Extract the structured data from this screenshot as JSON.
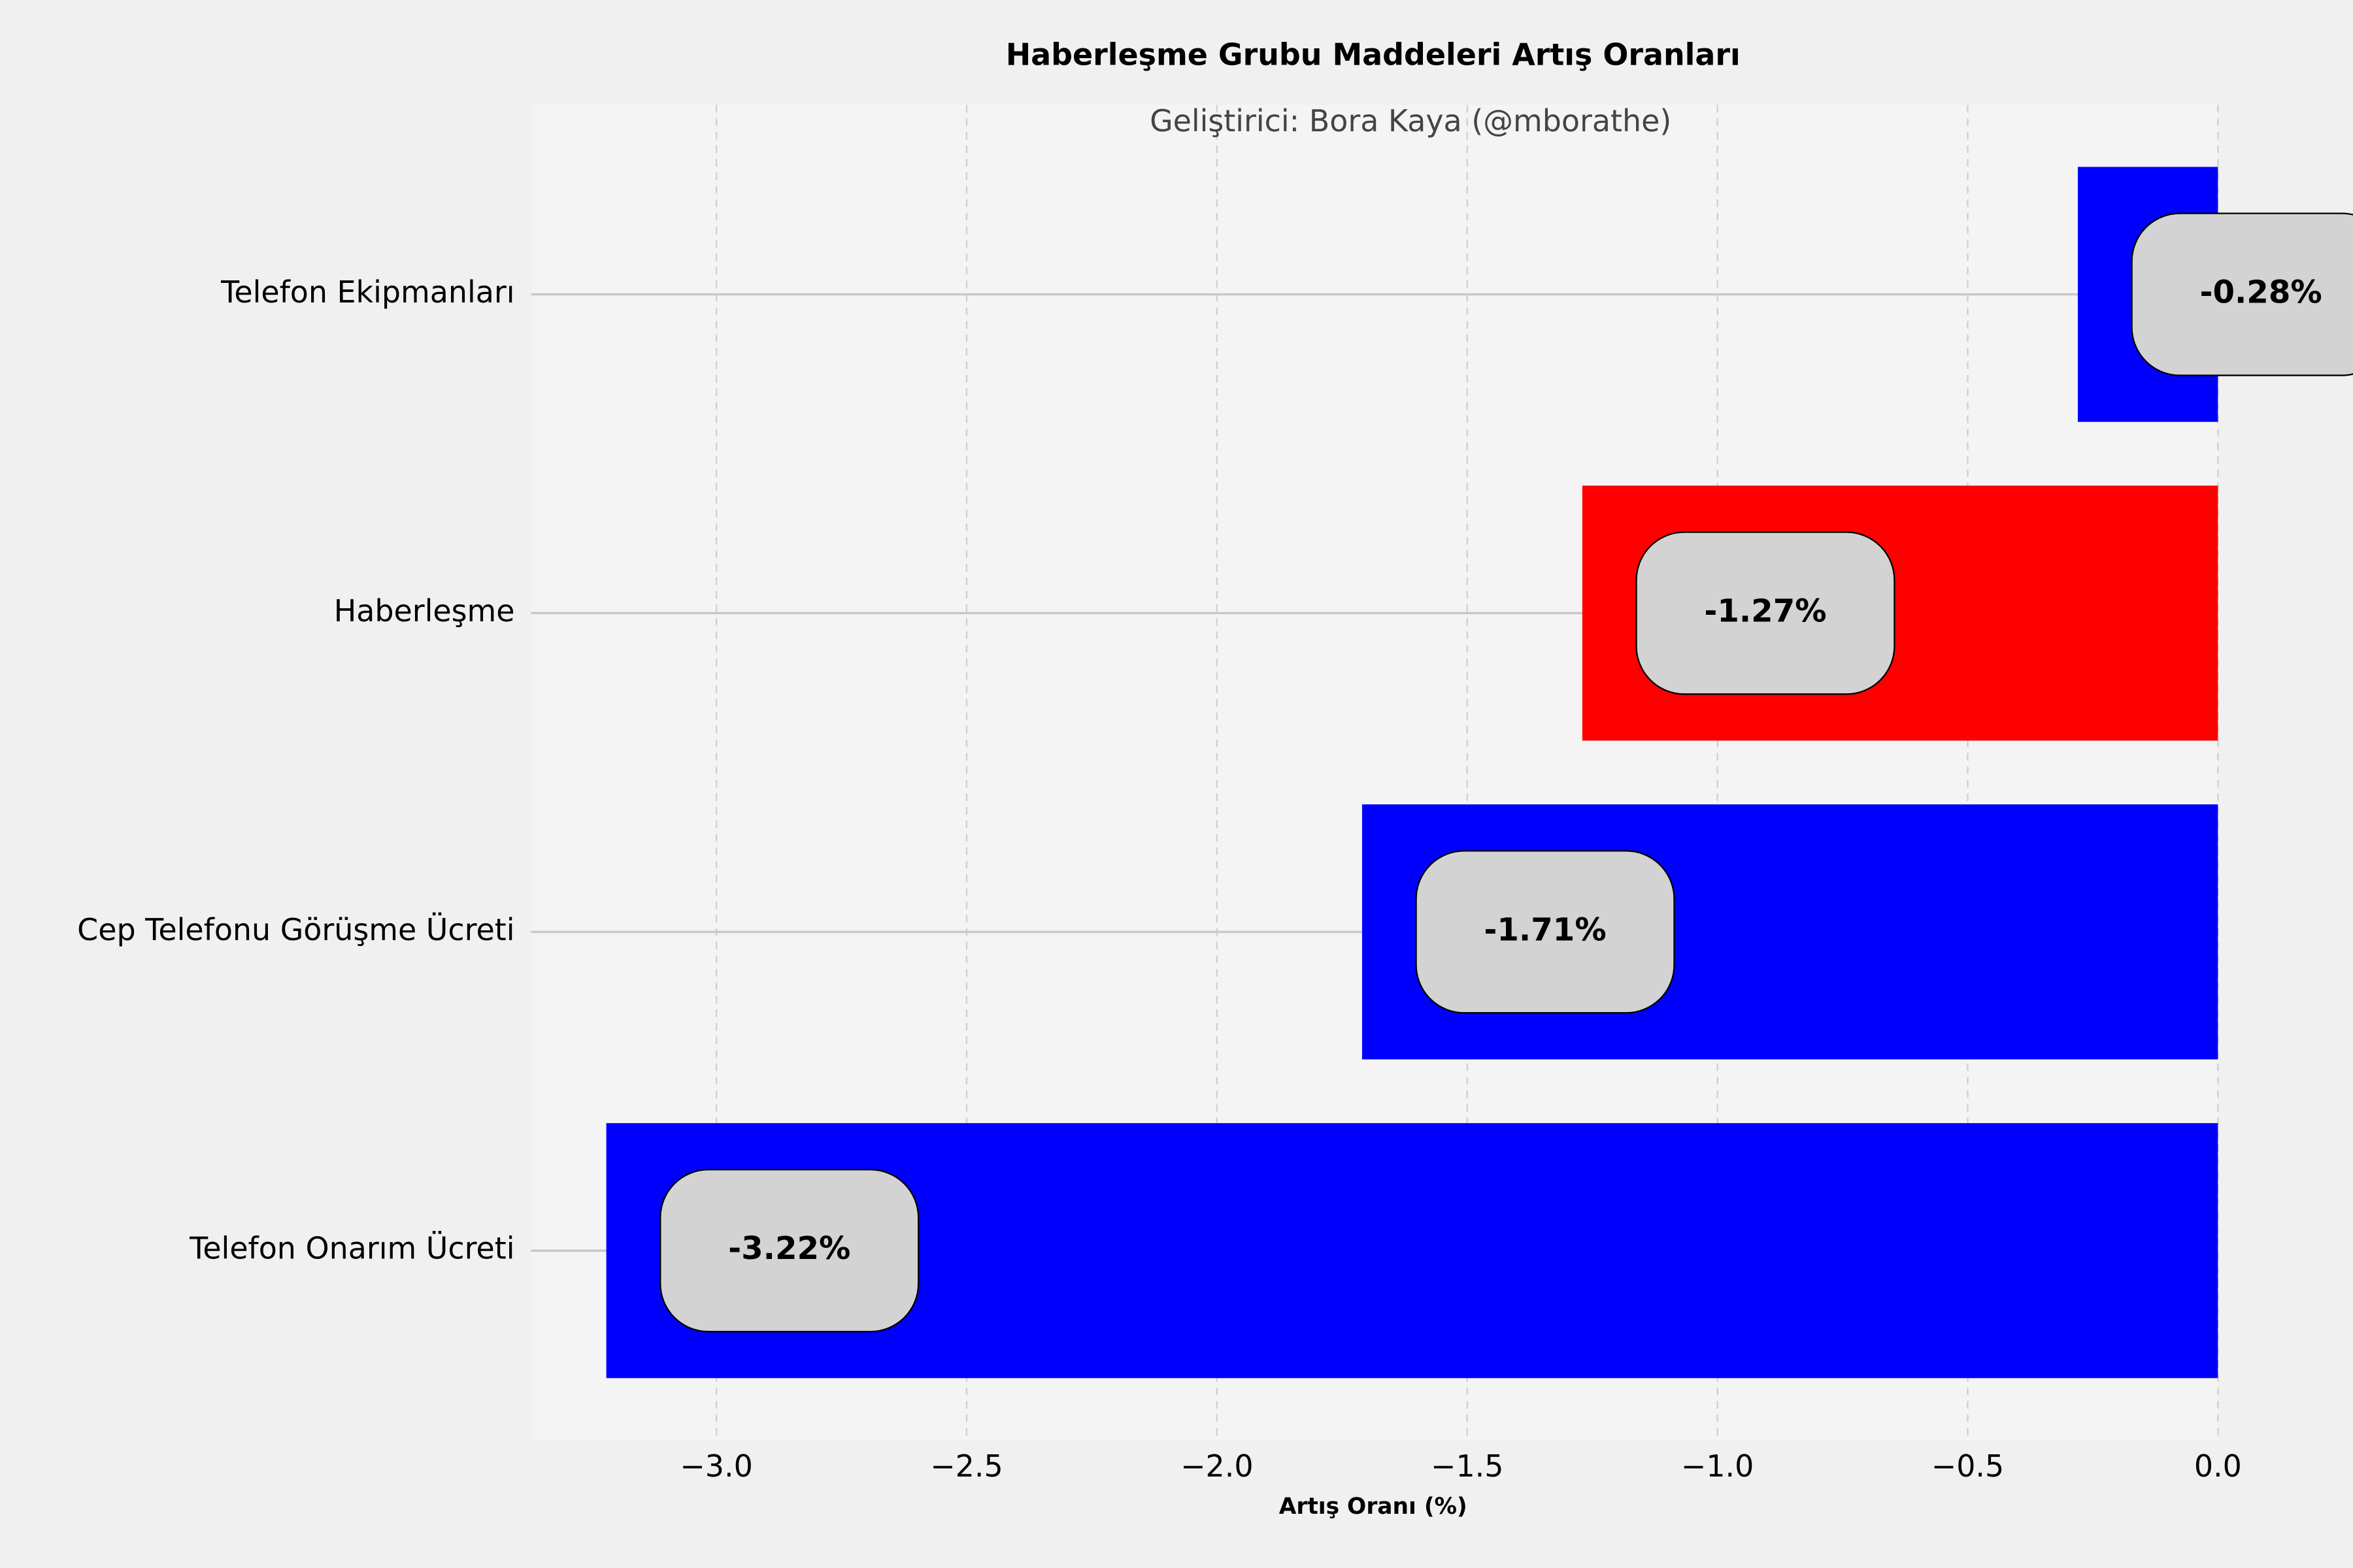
{
  "chart_data": {
    "type": "barh",
    "title": "Haberleşme Grubu Maddeleri Artış Oranları",
    "subtitle": "Geliştirici: Bora Kaya (@mborathe)",
    "x_label": "Artış Oranı (%)",
    "categories": [
      "Telefon Ekipmanları",
      "Haberleşme",
      "Cep Telefonu Görüşme Ücreti",
      "Telefon Onarım Ücreti"
    ],
    "values": [
      -0.28,
      -1.27,
      -1.71,
      -3.22
    ],
    "value_labels": [
      "-0.28%",
      "-1.27%",
      "-1.71%",
      "-3.22%"
    ],
    "colors": [
      "#0000ff",
      "#ff0000",
      "#0000ff",
      "#0000ff"
    ],
    "xlim": [
      -3.37,
      0
    ],
    "xticks": [
      {
        "value": -3,
        "label": "−3.0"
      },
      {
        "value": -2.5,
        "label": "−2.5"
      },
      {
        "value": -2,
        "label": "−2.0"
      },
      {
        "value": -1.5,
        "label": "−1.5"
      },
      {
        "value": -1,
        "label": "−1.0"
      },
      {
        "value": -0.5,
        "label": "−0.5"
      },
      {
        "value": 0,
        "label": "0.0"
      }
    ],
    "grid": true
  }
}
